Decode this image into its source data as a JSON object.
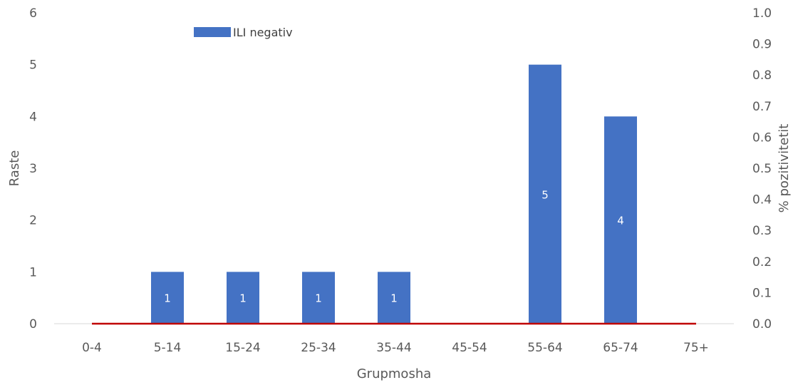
{
  "chart_data": {
    "type": "bar",
    "xlabel": "Grupmosha",
    "ylabel": "Raste",
    "y2label": "% pozitivitetit",
    "categories": [
      "0-4",
      "5-14",
      "15-24",
      "25-34",
      "35-44",
      "45-54",
      "55-64",
      "65-74",
      "75+"
    ],
    "series": [
      {
        "name": "ILI negativ",
        "type": "bar",
        "axis": "left",
        "values": [
          0,
          1,
          1,
          1,
          1,
          0,
          5,
          4,
          0
        ],
        "color": "#4472c4"
      },
      {
        "type": "line",
        "axis": "right",
        "values": [
          0,
          0,
          0,
          0,
          0,
          0,
          0,
          0,
          0
        ],
        "color": "#c00000"
      }
    ],
    "ylim": [
      0,
      6
    ],
    "yticks": [
      "0",
      "1",
      "2",
      "3",
      "4",
      "5",
      "6"
    ],
    "y2lim": [
      0,
      1.0
    ],
    "y2ticks": [
      "0.0",
      "0.1",
      "0.2",
      "0.3",
      "0.4",
      "0.5",
      "0.6",
      "0.7",
      "0.8",
      "0.9",
      "1.0"
    ],
    "data_labels": [
      "",
      "1",
      "1",
      "1",
      "1",
      "",
      "5",
      "4",
      ""
    ],
    "legend_position": "top-left",
    "grid": false
  }
}
